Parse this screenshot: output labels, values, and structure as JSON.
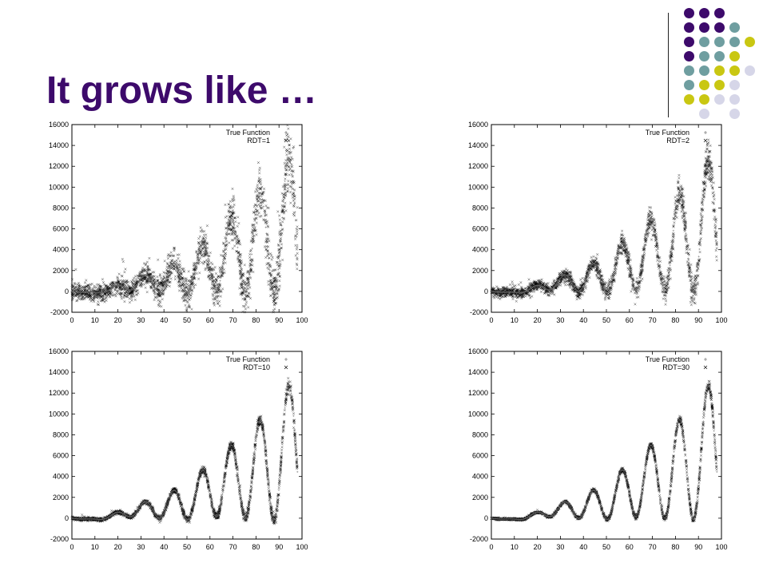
{
  "slide": {
    "title": "It grows like …"
  },
  "decoration": {
    "dot_colors": {
      "purple": "#3d0a6b",
      "teal": "#6f9ea0",
      "yellow": "#c9c712",
      "lavender": "#d6d6e8"
    }
  },
  "chart_data": [
    {
      "type": "scatter",
      "title": "",
      "xlabel": "",
      "ylabel": "",
      "xlim": [
        0,
        100
      ],
      "ylim": [
        -2000,
        16000
      ],
      "x_ticks": [
        "0",
        "10",
        "20",
        "30",
        "40",
        "50",
        "60",
        "70",
        "80",
        "90",
        "100"
      ],
      "y_ticks": [
        "-2000",
        "0",
        "2000",
        "4000",
        "6000",
        "8000",
        "10000",
        "12000",
        "14000",
        "16000"
      ],
      "legend_position": "top-right",
      "series": [
        {
          "name": "True Function",
          "marker": "+"
        },
        {
          "name": "RDT=1",
          "marker": "x",
          "spread": 1.0
        }
      ]
    },
    {
      "type": "scatter",
      "title": "",
      "xlabel": "",
      "ylabel": "",
      "xlim": [
        0,
        100
      ],
      "ylim": [
        -2000,
        16000
      ],
      "x_ticks": [
        "0",
        "10",
        "20",
        "30",
        "40",
        "50",
        "60",
        "70",
        "80",
        "90",
        "100"
      ],
      "y_ticks": [
        "-2000",
        "0",
        "2000",
        "4000",
        "6000",
        "8000",
        "10000",
        "12000",
        "14000",
        "16000"
      ],
      "legend_position": "top-right",
      "series": [
        {
          "name": "True Function",
          "marker": "+"
        },
        {
          "name": "RDT=2",
          "marker": "x",
          "spread": 0.55
        }
      ]
    },
    {
      "type": "scatter",
      "title": "",
      "xlabel": "",
      "ylabel": "",
      "xlim": [
        0,
        100
      ],
      "ylim": [
        -2000,
        16000
      ],
      "x_ticks": [
        "0",
        "10",
        "20",
        "30",
        "40",
        "50",
        "60",
        "70",
        "80",
        "90",
        "100"
      ],
      "y_ticks": [
        "-2000",
        "0",
        "2000",
        "4000",
        "6000",
        "8000",
        "10000",
        "12000",
        "14000",
        "16000"
      ],
      "legend_position": "top-right",
      "series": [
        {
          "name": "True Function",
          "marker": "+"
        },
        {
          "name": "RDT=10",
          "marker": "x",
          "spread": 0.2
        }
      ]
    },
    {
      "type": "scatter",
      "title": "",
      "xlabel": "",
      "ylabel": "",
      "xlim": [
        0,
        100
      ],
      "ylim": [
        -2000,
        16000
      ],
      "x_ticks": [
        "0",
        "10",
        "20",
        "30",
        "40",
        "50",
        "60",
        "70",
        "80",
        "90",
        "100"
      ],
      "y_ticks": [
        "-2000",
        "0",
        "2000",
        "4000",
        "6000",
        "8000",
        "10000",
        "12000",
        "14000",
        "16000"
      ],
      "legend_position": "top-right",
      "series": [
        {
          "name": "True Function",
          "marker": "+"
        },
        {
          "name": "RDT=30",
          "marker": "x",
          "spread": 0.12
        }
      ]
    }
  ]
}
